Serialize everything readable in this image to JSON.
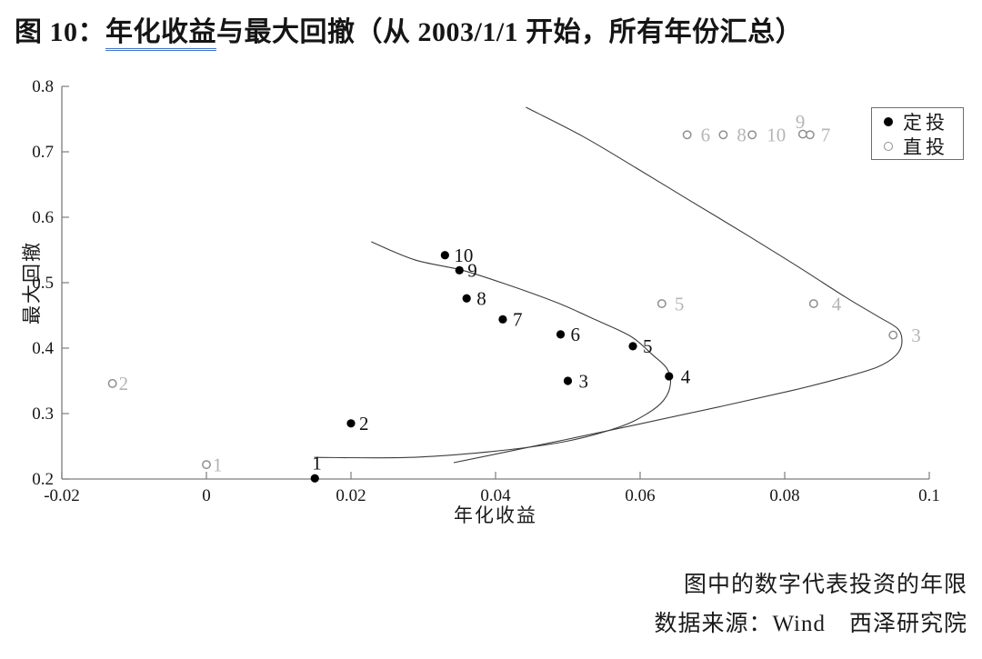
{
  "title": {
    "prefix": "图 10：",
    "underlined": "年化收益",
    "suffix": "与最大回撤（从 2003/1/1 开始，所有年份汇总）",
    "underline_color": "#4472c4"
  },
  "legend": {
    "items": [
      {
        "id": "dingtou",
        "label": "定投",
        "marker": "filled-circle",
        "color": "#000000"
      },
      {
        "id": "zhitou",
        "label": "直投",
        "marker": "open-circle",
        "color": "#8f8f8f"
      }
    ]
  },
  "captions": {
    "note": "图中的数字代表投资的年限",
    "source": "数据来源：Wind　西泽研究院"
  },
  "chart_data": {
    "type": "scatter",
    "title": "图 10：年化收益与最大回撤（从 2003/1/1 开始，所有年份汇总）",
    "xlabel": "年化收益",
    "ylabel": "最大回撤",
    "xlim": [
      -0.02,
      0.1
    ],
    "ylim": [
      0.2,
      0.8
    ],
    "x_ticks": [
      "-0.02",
      "0",
      "0.02",
      "0.04",
      "0.06",
      "0.08",
      "0.1"
    ],
    "y_ticks": [
      "0.2",
      "0.3",
      "0.4",
      "0.5",
      "0.6",
      "0.7",
      "0.8"
    ],
    "grid": false,
    "legend_position": "top-right",
    "axis_color": "#7d7d7d",
    "curve_color": "#3c3c3c",
    "point_label_meaning": "图中的数字代表投资的年限",
    "series": [
      {
        "id": "dingtou",
        "name": "定投",
        "marker": "filled-circle",
        "color": "#000000",
        "label_color": "#111111",
        "points": [
          {
            "label": "1",
            "x": 0.015,
            "y": 0.201,
            "dx": -3,
            "dy": -17
          },
          {
            "label": "2",
            "x": 0.02,
            "y": 0.285,
            "dx": 9
          },
          {
            "label": "3",
            "x": 0.05,
            "y": 0.35,
            "dx": 12
          },
          {
            "label": "4",
            "x": 0.064,
            "y": 0.357,
            "dx": 13
          },
          {
            "label": "5",
            "x": 0.059,
            "y": 0.403,
            "dx": 11
          },
          {
            "label": "6",
            "x": 0.049,
            "y": 0.421,
            "dx": 11
          },
          {
            "label": "7",
            "x": 0.041,
            "y": 0.444,
            "dx": 11
          },
          {
            "label": "8",
            "x": 0.036,
            "y": 0.476,
            "dx": 11
          },
          {
            "label": "9",
            "x": 0.035,
            "y": 0.519,
            "dx": 9
          },
          {
            "label": "10",
            "x": 0.033,
            "y": 0.542,
            "dx": 10
          }
        ]
      },
      {
        "id": "zhitou",
        "name": "直投",
        "marker": "open-circle",
        "color": "#8f8f8f",
        "label_color": "#b5b5b5",
        "points": [
          {
            "label": "1",
            "x": 0.0,
            "y": 0.222,
            "dx": 7
          },
          {
            "label": "2",
            "x": -0.013,
            "y": 0.346,
            "dx": 7
          },
          {
            "label": "3",
            "x": 0.095,
            "y": 0.42,
            "dx": 20
          },
          {
            "label": "4",
            "x": 0.084,
            "y": 0.468,
            "dx": 20
          },
          {
            "label": "5",
            "x": 0.063,
            "y": 0.468,
            "dx": 14
          },
          {
            "label": "6",
            "x": 0.0665,
            "y": 0.726,
            "dx": 15
          },
          {
            "label": "7",
            "x": 0.0835,
            "y": 0.726,
            "dx": 12
          },
          {
            "label": "8",
            "x": 0.0715,
            "y": 0.726,
            "dx": 15
          },
          {
            "label": "9",
            "x": 0.0825,
            "y": 0.727,
            "dx": -8,
            "dy": -14
          },
          {
            "label": "10",
            "x": 0.0755,
            "y": 0.726,
            "dx": 16
          }
        ]
      }
    ],
    "curves": [
      {
        "id": "inner-frontier",
        "points": [
          [
            0.0228,
            0.5625
          ],
          [
            0.0288,
            0.535
          ],
          [
            0.0354,
            0.519
          ],
          [
            0.0419,
            0.496
          ],
          [
            0.0486,
            0.469
          ],
          [
            0.0539,
            0.443
          ],
          [
            0.0587,
            0.418
          ],
          [
            0.0617,
            0.39
          ],
          [
            0.0637,
            0.369
          ],
          [
            0.0642,
            0.346
          ],
          [
            0.0633,
            0.321
          ],
          [
            0.061,
            0.3
          ],
          [
            0.057,
            0.279
          ],
          [
            0.0495,
            0.257
          ],
          [
            0.0394,
            0.242
          ],
          [
            0.0281,
            0.233
          ],
          [
            0.0149,
            0.233
          ]
        ]
      },
      {
        "id": "outer-frontier",
        "points": [
          [
            0.0442,
            0.768
          ],
          [
            0.052,
            0.724
          ],
          [
            0.0595,
            0.675
          ],
          [
            0.0671,
            0.624
          ],
          [
            0.0746,
            0.574
          ],
          [
            0.0822,
            0.522
          ],
          [
            0.0884,
            0.478
          ],
          [
            0.0928,
            0.449
          ],
          [
            0.0957,
            0.429
          ],
          [
            0.0962,
            0.407
          ],
          [
            0.0953,
            0.388
          ],
          [
            0.0928,
            0.371
          ],
          [
            0.0884,
            0.356
          ],
          [
            0.0809,
            0.335
          ],
          [
            0.0708,
            0.31
          ],
          [
            0.0595,
            0.283
          ],
          [
            0.047,
            0.254
          ],
          [
            0.0342,
            0.225
          ]
        ]
      }
    ]
  }
}
